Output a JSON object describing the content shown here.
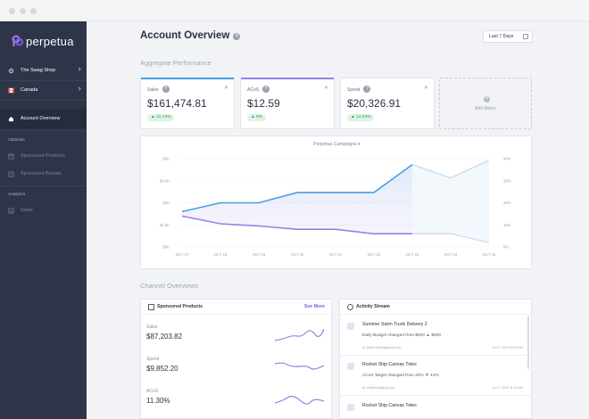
{
  "colors": {
    "accent_blue": "#4a9fe0",
    "accent_purple": "#9b7ee6",
    "sidebar_bg": "#2f3548",
    "positive_green": "#27a04a"
  },
  "brand": {
    "name": "perpetua"
  },
  "sidebar": {
    "store": "The Swag Shop",
    "region": "Canada",
    "nav_overview": "Account Overview",
    "section_optimize": "Optimize",
    "item_sponsored_products": "Sponsored Products",
    "item_sponsored_brands": "Sponsored Brands",
    "section_analytics": "Analytics",
    "item_sales": "Sales"
  },
  "header": {
    "title": "Account Overview",
    "date_range": "Last 7 Days"
  },
  "aggregate": {
    "section_title": "Aggregate Performance",
    "metrics": [
      {
        "label": "Sales",
        "value": "$161,474.81",
        "change": "31.74%"
      },
      {
        "label": "ACoS",
        "value": "$12.59",
        "change": "8%"
      },
      {
        "label": "Spend",
        "value": "$20,326.91",
        "change": "14.23%"
      }
    ],
    "add_metric": "Add Metric"
  },
  "chart_data": {
    "type": "line",
    "title": "Perpetua Campaigns",
    "categories": [
      "OCT 17",
      "OCT 18",
      "OCT 19",
      "OCT 20",
      "OCT 21",
      "OCT 22",
      "OCT 23",
      "OCT 24",
      "OCT 25"
    ],
    "y_left_ticks": [
      "$0K",
      "$1.5K",
      "$3K",
      "$4.5K",
      "$6K"
    ],
    "y_right_ticks": [
      "0%",
      "10%",
      "20%",
      "30%",
      "40%"
    ],
    "ylim_left": [
      0,
      6000
    ],
    "ylim_right": [
      0,
      40
    ],
    "series": [
      {
        "color": "#4a9fe0",
        "axis": "left",
        "values": [
          2400,
          3000,
          3000,
          3700,
          3700,
          3700,
          5600,
          4700,
          5900
        ],
        "projected_from": 6
      },
      {
        "color": "#9b7ee6",
        "axis": "right",
        "values": [
          14,
          10.5,
          9.5,
          8,
          8,
          6,
          6,
          6,
          2
        ],
        "projected_from": 6
      }
    ]
  },
  "channel": {
    "section_title": "Channel  Overviews",
    "sponsored_products": {
      "title": "Sponsored Products",
      "see_more": "See More",
      "rows": [
        {
          "label": "Sales",
          "value": "$87,203.82"
        },
        {
          "label": "Spend",
          "value": "$9,852.20"
        },
        {
          "label": "ACoS",
          "value": "11.30%"
        }
      ]
    },
    "activity": {
      "title": "Activity Stream",
      "items": [
        {
          "title": "Summer Swim Trunk Delivery 2",
          "desc_pre": "Daily Budget changed from ",
          "from": "$200",
          "to": "$400",
          "meta": "by kevin.s@swagshop.com",
          "date": "Oct 5, 2019 09:20 AM"
        },
        {
          "title": "Rocket Ship Canvas Totes",
          "desc_pre": "ACoS Target changed from ",
          "from": "20%",
          "to": "12%",
          "meta": "by tim@swagshop.com",
          "date": "Jun 4, 2019 11:30 AM"
        },
        {
          "title": "Rocket Ship Canvas Totes",
          "desc_pre": "",
          "from": "",
          "to": "",
          "meta": "",
          "date": ""
        }
      ]
    }
  }
}
